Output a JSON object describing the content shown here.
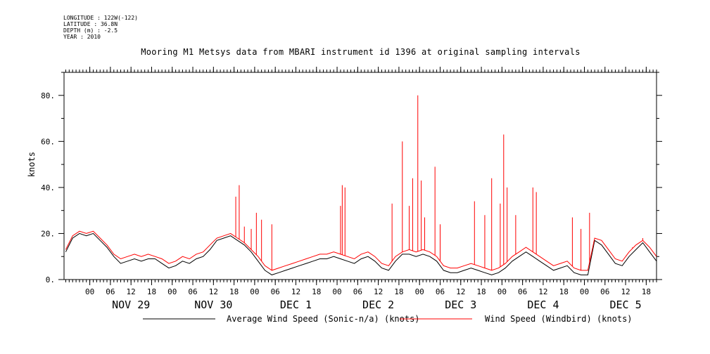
{
  "header": {
    "longitude": "LONGITUDE : 122W(-122)",
    "latitude": "LATITUDE : 36.8N",
    "depth": "DEPTH (m) : -2.5",
    "year": "YEAR : 2010"
  },
  "chart_data": {
    "type": "line",
    "title": "Mooring M1 Metsys data from MBARI instrument id 1396 at original sampling intervals",
    "xlabel": "",
    "ylabel": "knots",
    "ylim": [
      0,
      90
    ],
    "y_ticks": [
      0,
      20,
      40,
      60,
      80
    ],
    "y_tick_labels": [
      "0.",
      "20.",
      "40.",
      "60.",
      "80."
    ],
    "x_unit": "hours since 2010-11-28 00:00",
    "xlim": [
      16.5,
      189
    ],
    "x_ticks": [
      24,
      30,
      36,
      42,
      48,
      54,
      60,
      66,
      72,
      78,
      84,
      90,
      96,
      102,
      108,
      114,
      120,
      126,
      132,
      138,
      144,
      150,
      156,
      162,
      168,
      174,
      180,
      186
    ],
    "x_tick_labels": [
      "00",
      "06",
      "12",
      "18",
      "00",
      "06",
      "12",
      "18",
      "00",
      "06",
      "12",
      "18",
      "00",
      "06",
      "12",
      "18",
      "00",
      "06",
      "12",
      "18",
      "00",
      "06",
      "12",
      "18",
      "00",
      "06",
      "12",
      "18"
    ],
    "day_labels": [
      {
        "label": "NOV 29",
        "x": 36
      },
      {
        "label": "NOV 30",
        "x": 60
      },
      {
        "label": "DEC  1",
        "x": 84
      },
      {
        "label": "DEC  2",
        "x": 108
      },
      {
        "label": "DEC  3",
        "x": 132
      },
      {
        "label": "DEC  4",
        "x": 156
      },
      {
        "label": "DEC  5",
        "x": 180
      }
    ],
    "series": [
      {
        "name": "Average Wind Speed (Sonic-n/a) (knots)",
        "color": "#000000",
        "x": [
          17,
          19,
          21,
          23,
          25,
          27,
          29,
          31,
          33,
          35,
          37,
          39,
          41,
          43,
          45,
          47,
          49,
          51,
          53,
          55,
          57,
          59,
          61,
          63,
          65,
          67,
          69,
          71,
          73,
          75,
          77,
          79,
          81,
          83,
          85,
          87,
          89,
          91,
          93,
          95,
          97,
          99,
          101,
          103,
          105,
          107,
          109,
          111,
          113,
          115,
          117,
          119,
          121,
          123,
          125,
          127,
          129,
          131,
          133,
          135,
          137,
          139,
          141,
          143,
          145,
          147,
          149,
          151,
          153,
          155,
          157,
          159,
          161,
          163,
          165,
          167,
          169,
          171,
          173,
          175,
          177,
          179,
          181,
          183,
          185,
          187,
          189
        ],
        "y": [
          12,
          18,
          20,
          19,
          20,
          17,
          14,
          10,
          7,
          8,
          9,
          8,
          9,
          9,
          7,
          5,
          6,
          8,
          7,
          9,
          10,
          13,
          17,
          18,
          19,
          17,
          15,
          12,
          8,
          4,
          2,
          3,
          4,
          5,
          6,
          7,
          8,
          9,
          9,
          10,
          9,
          8,
          7,
          9,
          10,
          8,
          5,
          4,
          8,
          11,
          11,
          10,
          11,
          10,
          8,
          4,
          3,
          3,
          4,
          5,
          4,
          3,
          2,
          3,
          5,
          8,
          10,
          12,
          10,
          8,
          6,
          4,
          5,
          6,
          3,
          2,
          2,
          17,
          15,
          11,
          7,
          6,
          10,
          13,
          16,
          12,
          8
        ]
      },
      {
        "name": "Wind Speed (Windbird) (knots)",
        "color": "#ff0000",
        "x": [
          17,
          19,
          21,
          23,
          25,
          27,
          29,
          31,
          33,
          35,
          37,
          39,
          41,
          43,
          45,
          47,
          49,
          51,
          53,
          55,
          57,
          59,
          61,
          63,
          65,
          67,
          69,
          71,
          73,
          75,
          77,
          79,
          81,
          83,
          85,
          87,
          89,
          91,
          93,
          95,
          97,
          99,
          101,
          103,
          105,
          107,
          109,
          111,
          113,
          115,
          117,
          119,
          121,
          123,
          125,
          127,
          129,
          131,
          133,
          135,
          137,
          139,
          141,
          143,
          145,
          147,
          149,
          151,
          153,
          155,
          157,
          159,
          161,
          163,
          165,
          167,
          169,
          171,
          173,
          175,
          177,
          179,
          181,
          183,
          185,
          187,
          189
        ],
        "y": [
          13,
          19,
          21,
          20,
          21,
          18,
          15,
          11,
          9,
          10,
          11,
          10,
          11,
          10,
          9,
          7,
          8,
          10,
          9,
          11,
          12,
          15,
          18,
          19,
          20,
          18,
          16,
          13,
          10,
          6,
          4,
          5,
          6,
          7,
          8,
          9,
          10,
          11,
          11,
          12,
          11,
          10,
          9,
          11,
          12,
          10,
          7,
          6,
          10,
          12,
          13,
          12,
          13,
          12,
          10,
          6,
          5,
          5,
          6,
          7,
          6,
          5,
          4,
          5,
          7,
          10,
          12,
          14,
          12,
          10,
          8,
          6,
          7,
          8,
          5,
          4,
          4,
          18,
          17,
          13,
          9,
          8,
          12,
          15,
          17,
          14,
          10
        ]
      }
    ],
    "spikes": [
      {
        "x": 66.5,
        "y": 36
      },
      {
        "x": 67.5,
        "y": 41
      },
      {
        "x": 69,
        "y": 23
      },
      {
        "x": 71,
        "y": 22
      },
      {
        "x": 72.5,
        "y": 29
      },
      {
        "x": 74,
        "y": 26
      },
      {
        "x": 77,
        "y": 24
      },
      {
        "x": 97,
        "y": 32
      },
      {
        "x": 97.5,
        "y": 41
      },
      {
        "x": 98.3,
        "y": 40
      },
      {
        "x": 112,
        "y": 33
      },
      {
        "x": 115,
        "y": 60
      },
      {
        "x": 117,
        "y": 32
      },
      {
        "x": 118,
        "y": 44
      },
      {
        "x": 119.5,
        "y": 80
      },
      {
        "x": 120.5,
        "y": 43
      },
      {
        "x": 121.5,
        "y": 27
      },
      {
        "x": 124.5,
        "y": 49
      },
      {
        "x": 126,
        "y": 24
      },
      {
        "x": 136,
        "y": 34
      },
      {
        "x": 139,
        "y": 28
      },
      {
        "x": 141,
        "y": 44
      },
      {
        "x": 143.5,
        "y": 33
      },
      {
        "x": 144.5,
        "y": 63
      },
      {
        "x": 145.5,
        "y": 40
      },
      {
        "x": 148,
        "y": 28
      },
      {
        "x": 153,
        "y": 40
      },
      {
        "x": 154,
        "y": 38
      },
      {
        "x": 164.5,
        "y": 27
      },
      {
        "x": 167,
        "y": 22
      },
      {
        "x": 169.5,
        "y": 29
      },
      {
        "x": 182,
        "y": 14
      },
      {
        "x": 185,
        "y": 18
      }
    ],
    "legend_placement": "bottom",
    "grid": false
  }
}
